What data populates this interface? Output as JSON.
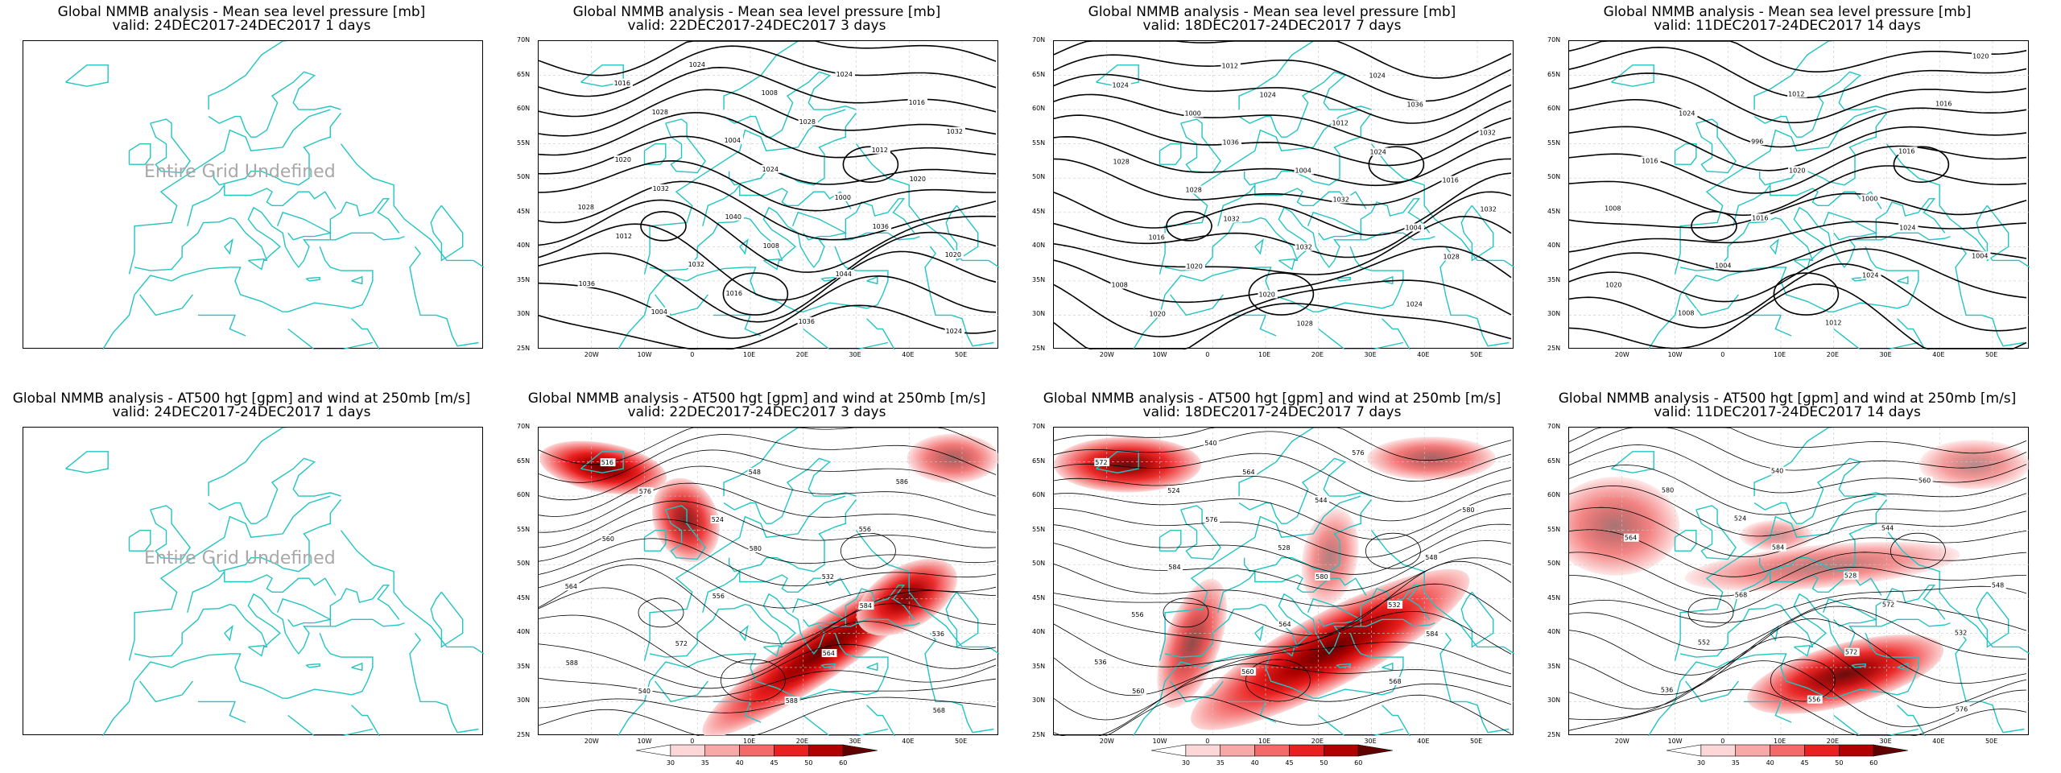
{
  "panels": [
    {
      "title1": "Global NMMB analysis - Mean sea level pressure [mb]",
      "title2": "valid: 24DEC2017-24DEC2017  1 days",
      "undefined_text": "Entire Grid Undefined"
    },
    {
      "title1": "Global NMMB analysis - Mean sea level pressure [mb]",
      "title2": "valid: 22DEC2017-24DEC2017  3 days",
      "contour_labels": [
        "1016",
        "1004",
        "1000",
        "1020",
        "1004",
        "1008",
        "1012",
        "1028",
        "1032",
        "1036",
        "1016",
        "1020",
        "1040",
        "1044",
        "1024",
        "1028",
        "1024",
        "1036",
        "1036",
        "1024",
        "1028",
        "1020",
        "1012",
        "1016",
        "1024",
        "1032",
        "1032",
        "1008"
      ]
    },
    {
      "title1": "Global NMMB analysis - Mean sea level pressure [mb]",
      "title2": "valid: 18DEC2017-24DEC2017  7 days",
      "contour_labels": [
        "1000",
        "1004",
        "1004",
        "1008",
        "1012",
        "1012",
        "1016",
        "1016",
        "1020",
        "1024",
        "1032",
        "1028",
        "1032",
        "1024",
        "1024",
        "1036",
        "1032",
        "1028",
        "1020",
        "1024",
        "1024",
        "1032",
        "1020",
        "1028",
        "1036",
        "1028",
        "1032"
      ]
    },
    {
      "title1": "Global NMMB analysis - Mean sea level pressure [mb]",
      "title2": "valid: 11DEC2017-24DEC2017  14 days",
      "contour_labels": [
        "996",
        "1000",
        "1004",
        "1008",
        "1012",
        "1016",
        "1008",
        "1004",
        "1012",
        "1016",
        "1016",
        "1016",
        "1024",
        "1020",
        "1024",
        "1020",
        "1024",
        "1020"
      ]
    },
    {
      "title1": "Global NMMB analysis - AT500 hgt [gpm] and wind at 250mb [m/s]",
      "title2": "valid: 24DEC2017-24DEC2017  1 days",
      "undefined_text": "Entire Grid Undefined"
    },
    {
      "title1": "Global NMMB analysis - AT500 hgt [gpm] and wind at 250mb [m/s]",
      "title2": "valid: 22DEC2017-24DEC2017  3 days",
      "contour_labels": [
        "516",
        "524",
        "532",
        "536",
        "540",
        "548",
        "556",
        "564",
        "572",
        "588",
        "586",
        "560",
        "556",
        "564",
        "568",
        "576",
        "580",
        "584",
        "588"
      ]
    },
    {
      "title1": "Global NMMB analysis - AT500 hgt [gpm] and wind at 250mb [m/s]",
      "title2": "valid: 18DEC2017-24DEC2017  7 days",
      "contour_labels": [
        "524",
        "528",
        "532",
        "536",
        "540",
        "544",
        "548",
        "556",
        "560",
        "576",
        "580",
        "584",
        "564",
        "568",
        "572",
        "576",
        "580",
        "584",
        "560",
        "564"
      ]
    },
    {
      "title1": "Global NMMB analysis - AT500 hgt [gpm] and wind at 250mb [m/s]",
      "title2": "valid: 11DEC2017-24DEC2017  14 days",
      "contour_labels": [
        "524",
        "528",
        "532",
        "536",
        "540",
        "544",
        "548",
        "552",
        "556",
        "560",
        "564",
        "568",
        "572",
        "576",
        "580",
        "584",
        "572"
      ]
    }
  ],
  "axes": {
    "lat_labels": [
      "70N",
      "65N",
      "60N",
      "55N",
      "50N",
      "45N",
      "40N",
      "35N",
      "30N",
      "25N"
    ],
    "lon_labels": [
      "20W",
      "10W",
      "0",
      "10E",
      "20E",
      "30E",
      "40E",
      "50E"
    ]
  },
  "colorbar": {
    "labels": [
      "30",
      "35",
      "40",
      "45",
      "50",
      "60"
    ],
    "colors": [
      "#ffffff",
      "#fcd7d7",
      "#f9a8a8",
      "#f46a6a",
      "#e8201f",
      "#b00000",
      "#600000"
    ]
  },
  "colors": {
    "coast": "#22c4c4",
    "contour": "#000000",
    "grid": "#c8c8c8"
  }
}
